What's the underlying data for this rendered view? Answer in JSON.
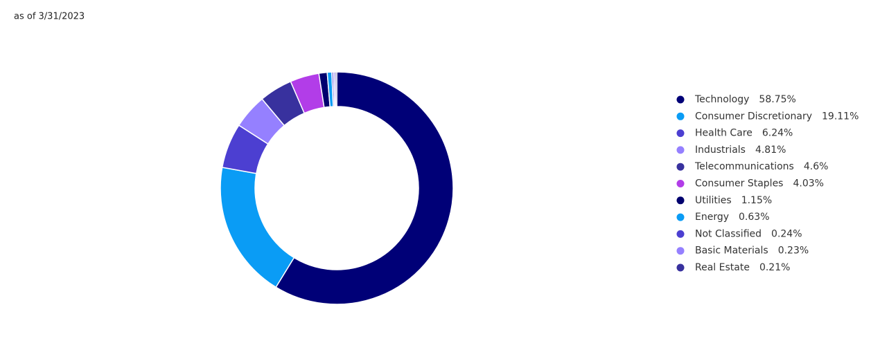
{
  "chart_data": {
    "type": "pie",
    "subtitle": "as of 3/31/2023",
    "categories": [
      "Technology",
      "Consumer Discretionary",
      "Health Care",
      "Industrials",
      "Telecommunications",
      "Consumer Staples",
      "Utilities",
      "Energy",
      "Not Classified",
      "Basic Materials",
      "Real Estate"
    ],
    "values": [
      58.75,
      19.11,
      6.24,
      4.81,
      4.6,
      4.03,
      1.15,
      0.63,
      0.24,
      0.23,
      0.21
    ],
    "value_labels": [
      "58.75%",
      "19.11%",
      "6.24%",
      "4.81%",
      "4.6%",
      "4.03%",
      "1.15%",
      "0.63%",
      "0.24%",
      "0.23%",
      "0.21%"
    ],
    "colors": [
      "#000077",
      "#0a9cf5",
      "#4c3fd1",
      "#9580ff",
      "#38319e",
      "#b23de8",
      "#00006e",
      "#0a9cf5",
      "#4c3fd1",
      "#9580ff",
      "#38319e"
    ],
    "legend": "right"
  }
}
